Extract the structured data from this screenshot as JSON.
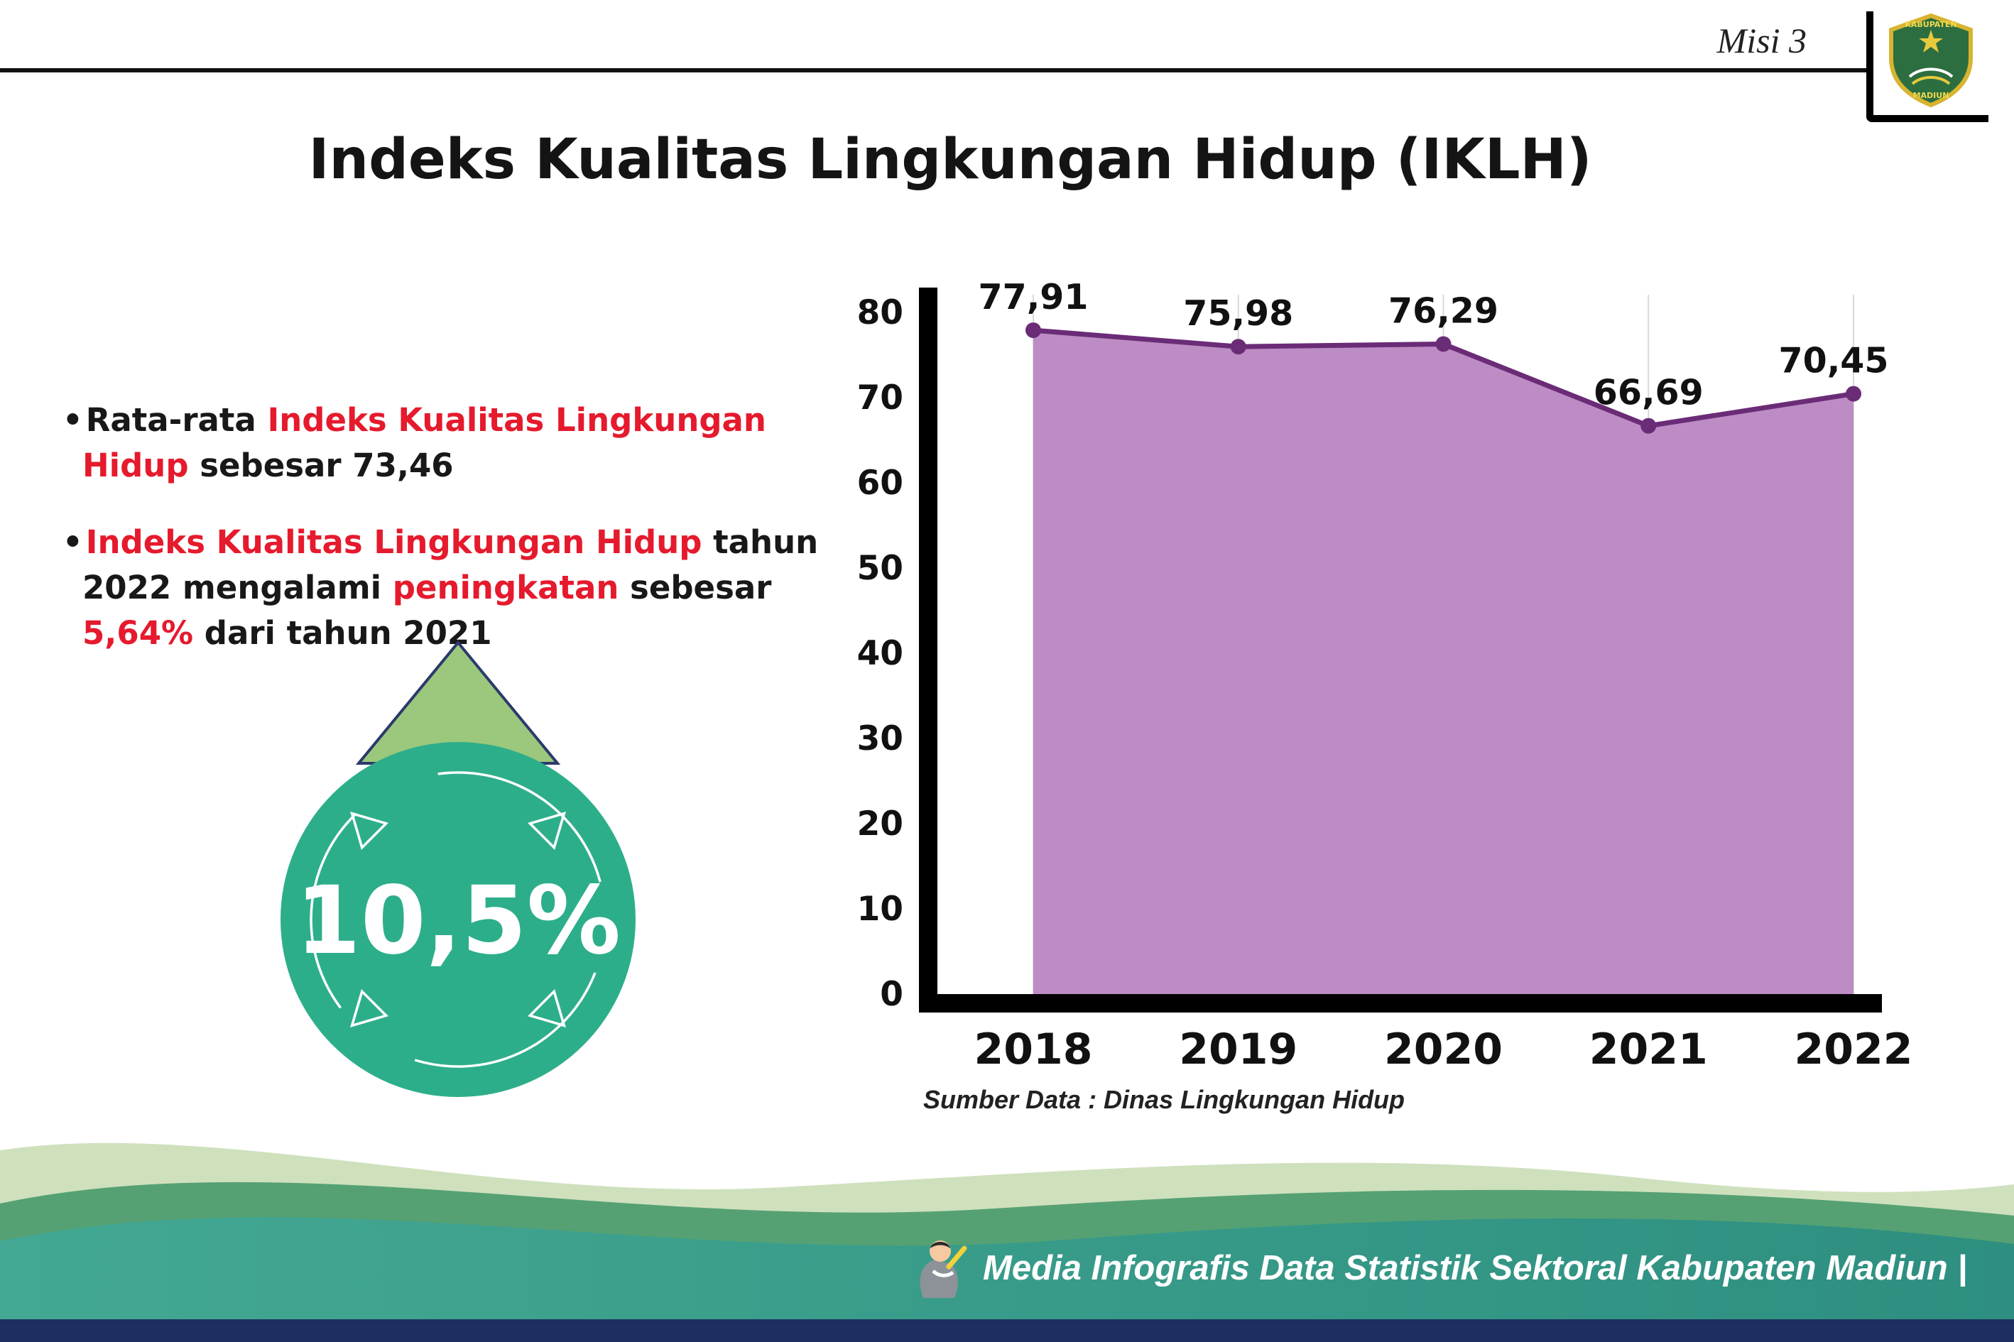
{
  "header": {
    "misi": "Misi 3",
    "title": "Indeks Kualitas Lingkungan Hidup (IKLH)",
    "logo": {
      "top_text": "KABUPATEN",
      "bottom_text": "MADIUN"
    }
  },
  "bullets": {
    "b1": [
      {
        "t": "Rata-rata "
      },
      {
        "t": "Indeks Kualitas Lingkungan Hidup",
        "red": true
      },
      {
        "t": " sebesar 73,46"
      }
    ],
    "b2": [
      {
        "t": "Indeks Kualitas Lingkungan Hidup",
        "red": true
      },
      {
        "t": " tahun 2022 mengalami "
      },
      {
        "t": "peningkatan",
        "red": true
      },
      {
        "t": " sebesar "
      },
      {
        "t": "5,64%",
        "red": true
      },
      {
        "t": " dari tahun 2021"
      }
    ]
  },
  "badge": {
    "value": "10,5%"
  },
  "chart_data": {
    "type": "area",
    "title": "Indeks Kualitas Lingkungan Hidup (IKLH)",
    "categories": [
      "2018",
      "2019",
      "2020",
      "2021",
      "2022"
    ],
    "values": [
      77.91,
      75.98,
      76.29,
      66.69,
      70.45
    ],
    "point_labels": [
      "77,91",
      "75,98",
      "76,29",
      "66,69",
      "70,45"
    ],
    "ylim": [
      0,
      80
    ],
    "yticks": [
      0,
      10,
      20,
      30,
      40,
      50,
      60,
      70,
      80
    ],
    "grid": "vertical-light",
    "legend": "none",
    "colors": {
      "area_fill": "#bd8cc5",
      "line": "#6b2c77",
      "point": "#6b2c77",
      "axis": "#000000",
      "gridline": "#d9d9d9"
    },
    "source_note": "Sumber Data : Dinas Lingkungan Hidup"
  },
  "footer": {
    "credit": "Media Infografis Data Statistik Sektoral Kabupaten Madiun |"
  },
  "colors": {
    "red_accent": "#e51a2d",
    "badge_circle": "#2dae8b",
    "badge_arrow": "#9bc87d",
    "footer_teal": "#3aa28e",
    "footer_green": "#55a173",
    "footer_sage": "#cfe0bd",
    "navy_bar": "#1c2f5e"
  }
}
